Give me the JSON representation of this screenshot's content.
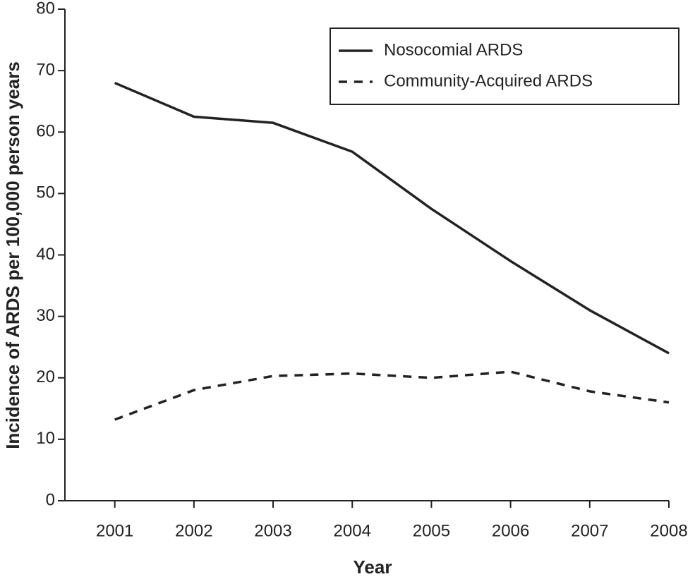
{
  "chart_data": {
    "type": "line",
    "x_label": "Year",
    "y_label": "Incidence of ARDS per 100,000 person years",
    "x": [
      2001,
      2002,
      2003,
      2004,
      2005,
      2006,
      2007,
      2008
    ],
    "xlim": [
      2000.37,
      2008
    ],
    "xticks": [
      2001,
      2002,
      2003,
      2004,
      2005,
      2006,
      2007,
      2008
    ],
    "ylim": [
      0,
      80
    ],
    "yticks": [
      0,
      10,
      20,
      30,
      40,
      50,
      60,
      70,
      80
    ],
    "legend_position": "upper right",
    "series": [
      {
        "name": "Nosocomial ARDS",
        "color": "#222222",
        "linestyle": "solid",
        "values": [
          68,
          62.5,
          61.5,
          56.8,
          47.5,
          39,
          31,
          24
        ]
      },
      {
        "name": "Community-Acquired ARDS",
        "color": "#222222",
        "linestyle": "dashed",
        "values": [
          13.2,
          18,
          20.3,
          20.7,
          20,
          21,
          17.8,
          16
        ]
      }
    ]
  }
}
